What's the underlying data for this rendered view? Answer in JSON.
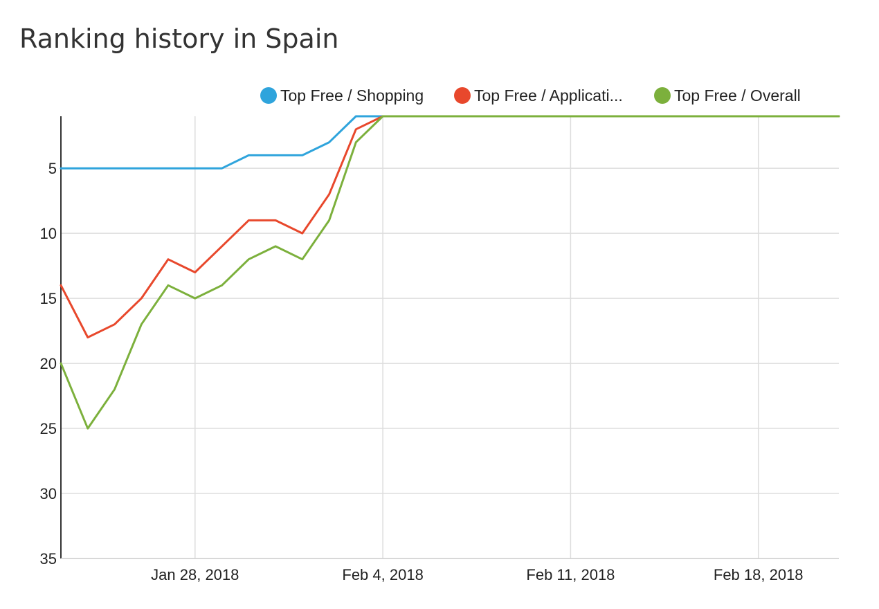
{
  "title": "Ranking history in Spain",
  "chart_data": {
    "type": "line",
    "title": "Ranking history in Spain",
    "xlabel": "",
    "ylabel": "",
    "x_axis": {
      "type": "date",
      "range": [
        "2018-01-23",
        "2018-02-21"
      ],
      "ticks": [
        "2018-01-28",
        "2018-02-04",
        "2018-02-11",
        "2018-02-18"
      ],
      "tick_labels": [
        "Jan 28, 2018",
        "Feb 4, 2018",
        "Feb 11, 2018",
        "Feb 18, 2018"
      ]
    },
    "y_axis": {
      "reversed": true,
      "range": [
        1,
        35
      ],
      "ticks": [
        5,
        10,
        15,
        20,
        25,
        30,
        35
      ],
      "tick_labels": [
        "5",
        "10",
        "15",
        "20",
        "25",
        "30",
        "35"
      ]
    },
    "grid": true,
    "legend_position": "top-right",
    "x": [
      "2018-01-23",
      "2018-01-24",
      "2018-01-25",
      "2018-01-26",
      "2018-01-27",
      "2018-01-28",
      "2018-01-29",
      "2018-01-30",
      "2018-01-31",
      "2018-02-01",
      "2018-02-02",
      "2018-02-03",
      "2018-02-04",
      "2018-02-05",
      "2018-02-06",
      "2018-02-07",
      "2018-02-08",
      "2018-02-09",
      "2018-02-10",
      "2018-02-11",
      "2018-02-12",
      "2018-02-13",
      "2018-02-14",
      "2018-02-15",
      "2018-02-16",
      "2018-02-17",
      "2018-02-18",
      "2018-02-19",
      "2018-02-20",
      "2018-02-21"
    ],
    "series": [
      {
        "name": "Top Free / Shopping",
        "color": "#2fa4dc",
        "values": [
          5,
          5,
          5,
          5,
          5,
          5,
          5,
          4,
          4,
          4,
          3,
          1,
          1,
          1,
          1,
          1,
          1,
          1,
          1,
          1,
          1,
          1,
          1,
          1,
          1,
          1,
          1,
          1,
          1,
          1
        ]
      },
      {
        "name": "Top Free / Applicati...",
        "color": "#e8482c",
        "values": [
          14,
          18,
          17,
          15,
          12,
          13,
          11,
          9,
          9,
          10,
          7,
          2,
          1,
          1,
          1,
          1,
          1,
          1,
          1,
          1,
          1,
          1,
          1,
          1,
          1,
          1,
          1,
          1,
          1,
          1
        ]
      },
      {
        "name": "Top Free / Overall",
        "color": "#7cb03c",
        "values": [
          20,
          25,
          22,
          17,
          14,
          15,
          14,
          12,
          11,
          12,
          9,
          3,
          1,
          1,
          1,
          1,
          1,
          1,
          1,
          1,
          1,
          1,
          1,
          1,
          1,
          1,
          1,
          1,
          1,
          1
        ]
      }
    ]
  }
}
